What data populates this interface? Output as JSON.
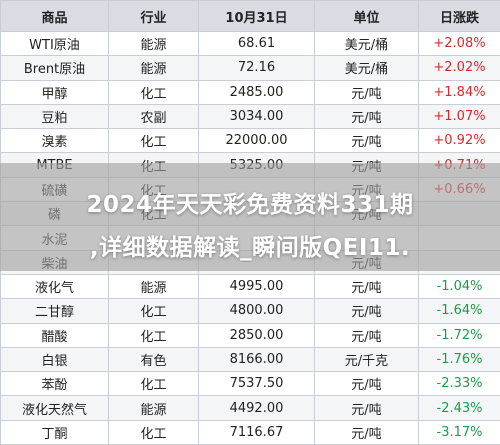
{
  "table": {
    "headers": [
      "商品",
      "行业",
      "10月31日",
      "单位",
      "日涨跌"
    ],
    "rows": [
      {
        "name": "WTI原油",
        "industry": "能源",
        "price": "68.61",
        "unit": "美元/桶",
        "change": "+2.08%",
        "direction": "up"
      },
      {
        "name": "Brent原油",
        "industry": "能源",
        "price": "72.16",
        "unit": "美元/桶",
        "change": "+2.02%",
        "direction": "up"
      },
      {
        "name": "甲醇",
        "industry": "化工",
        "price": "2485.00",
        "unit": "元/吨",
        "change": "+1.84%",
        "direction": "up"
      },
      {
        "name": "豆粕",
        "industry": "农副",
        "price": "3034.00",
        "unit": "元/吨",
        "change": "+1.07%",
        "direction": "up"
      },
      {
        "name": "溴素",
        "industry": "化工",
        "price": "22000.00",
        "unit": "元/吨",
        "change": "+0.92%",
        "direction": "up"
      },
      {
        "name": "MTBE",
        "industry": "化工",
        "price": "5325.00",
        "unit": "元/吨",
        "change": "+0.71%",
        "direction": "up"
      },
      {
        "name": "硫磺",
        "industry": "化工",
        "price": "",
        "unit": "元/吨",
        "change": "+0.66%",
        "direction": "up"
      },
      {
        "name": "磷",
        "industry": "化工",
        "price": "",
        "unit": "元/吨",
        "change": "",
        "direction": "up"
      },
      {
        "name": "水泥",
        "industry": "",
        "price": "",
        "unit": "",
        "change": "",
        "direction": "up"
      },
      {
        "name": "柴油",
        "industry": "",
        "price": "",
        "unit": "元/吨",
        "change": "",
        "direction": "up"
      },
      {
        "name": "液化气",
        "industry": "能源",
        "price": "4995.00",
        "unit": "元/吨",
        "change": "-1.04%",
        "direction": "down"
      },
      {
        "name": "二甘醇",
        "industry": "化工",
        "price": "4800.00",
        "unit": "元/吨",
        "change": "-1.64%",
        "direction": "down"
      },
      {
        "name": "醋酸",
        "industry": "化工",
        "price": "2850.00",
        "unit": "元/吨",
        "change": "-1.72%",
        "direction": "down"
      },
      {
        "name": "白银",
        "industry": "有色",
        "price": "8166.00",
        "unit": "元/千克",
        "change": "-1.76%",
        "direction": "down"
      },
      {
        "name": "苯酚",
        "industry": "化工",
        "price": "7537.50",
        "unit": "元/吨",
        "change": "-2.33%",
        "direction": "down"
      },
      {
        "name": "液化天然气",
        "industry": "能源",
        "price": "4492.00",
        "unit": "元/吨",
        "change": "-2.43%",
        "direction": "down"
      },
      {
        "name": "丁酮",
        "industry": "化工",
        "price": "7116.67",
        "unit": "元/吨",
        "change": "-3.17%",
        "direction": "down"
      }
    ]
  },
  "overlay": {
    "line1": "2024年天天彩免费资料331期",
    "line2": ",详细数据解读_瞬间版QEI11."
  },
  "colors": {
    "up": "#e0262c",
    "down": "#1f9a4a",
    "header_bg": "#d9dde3"
  }
}
